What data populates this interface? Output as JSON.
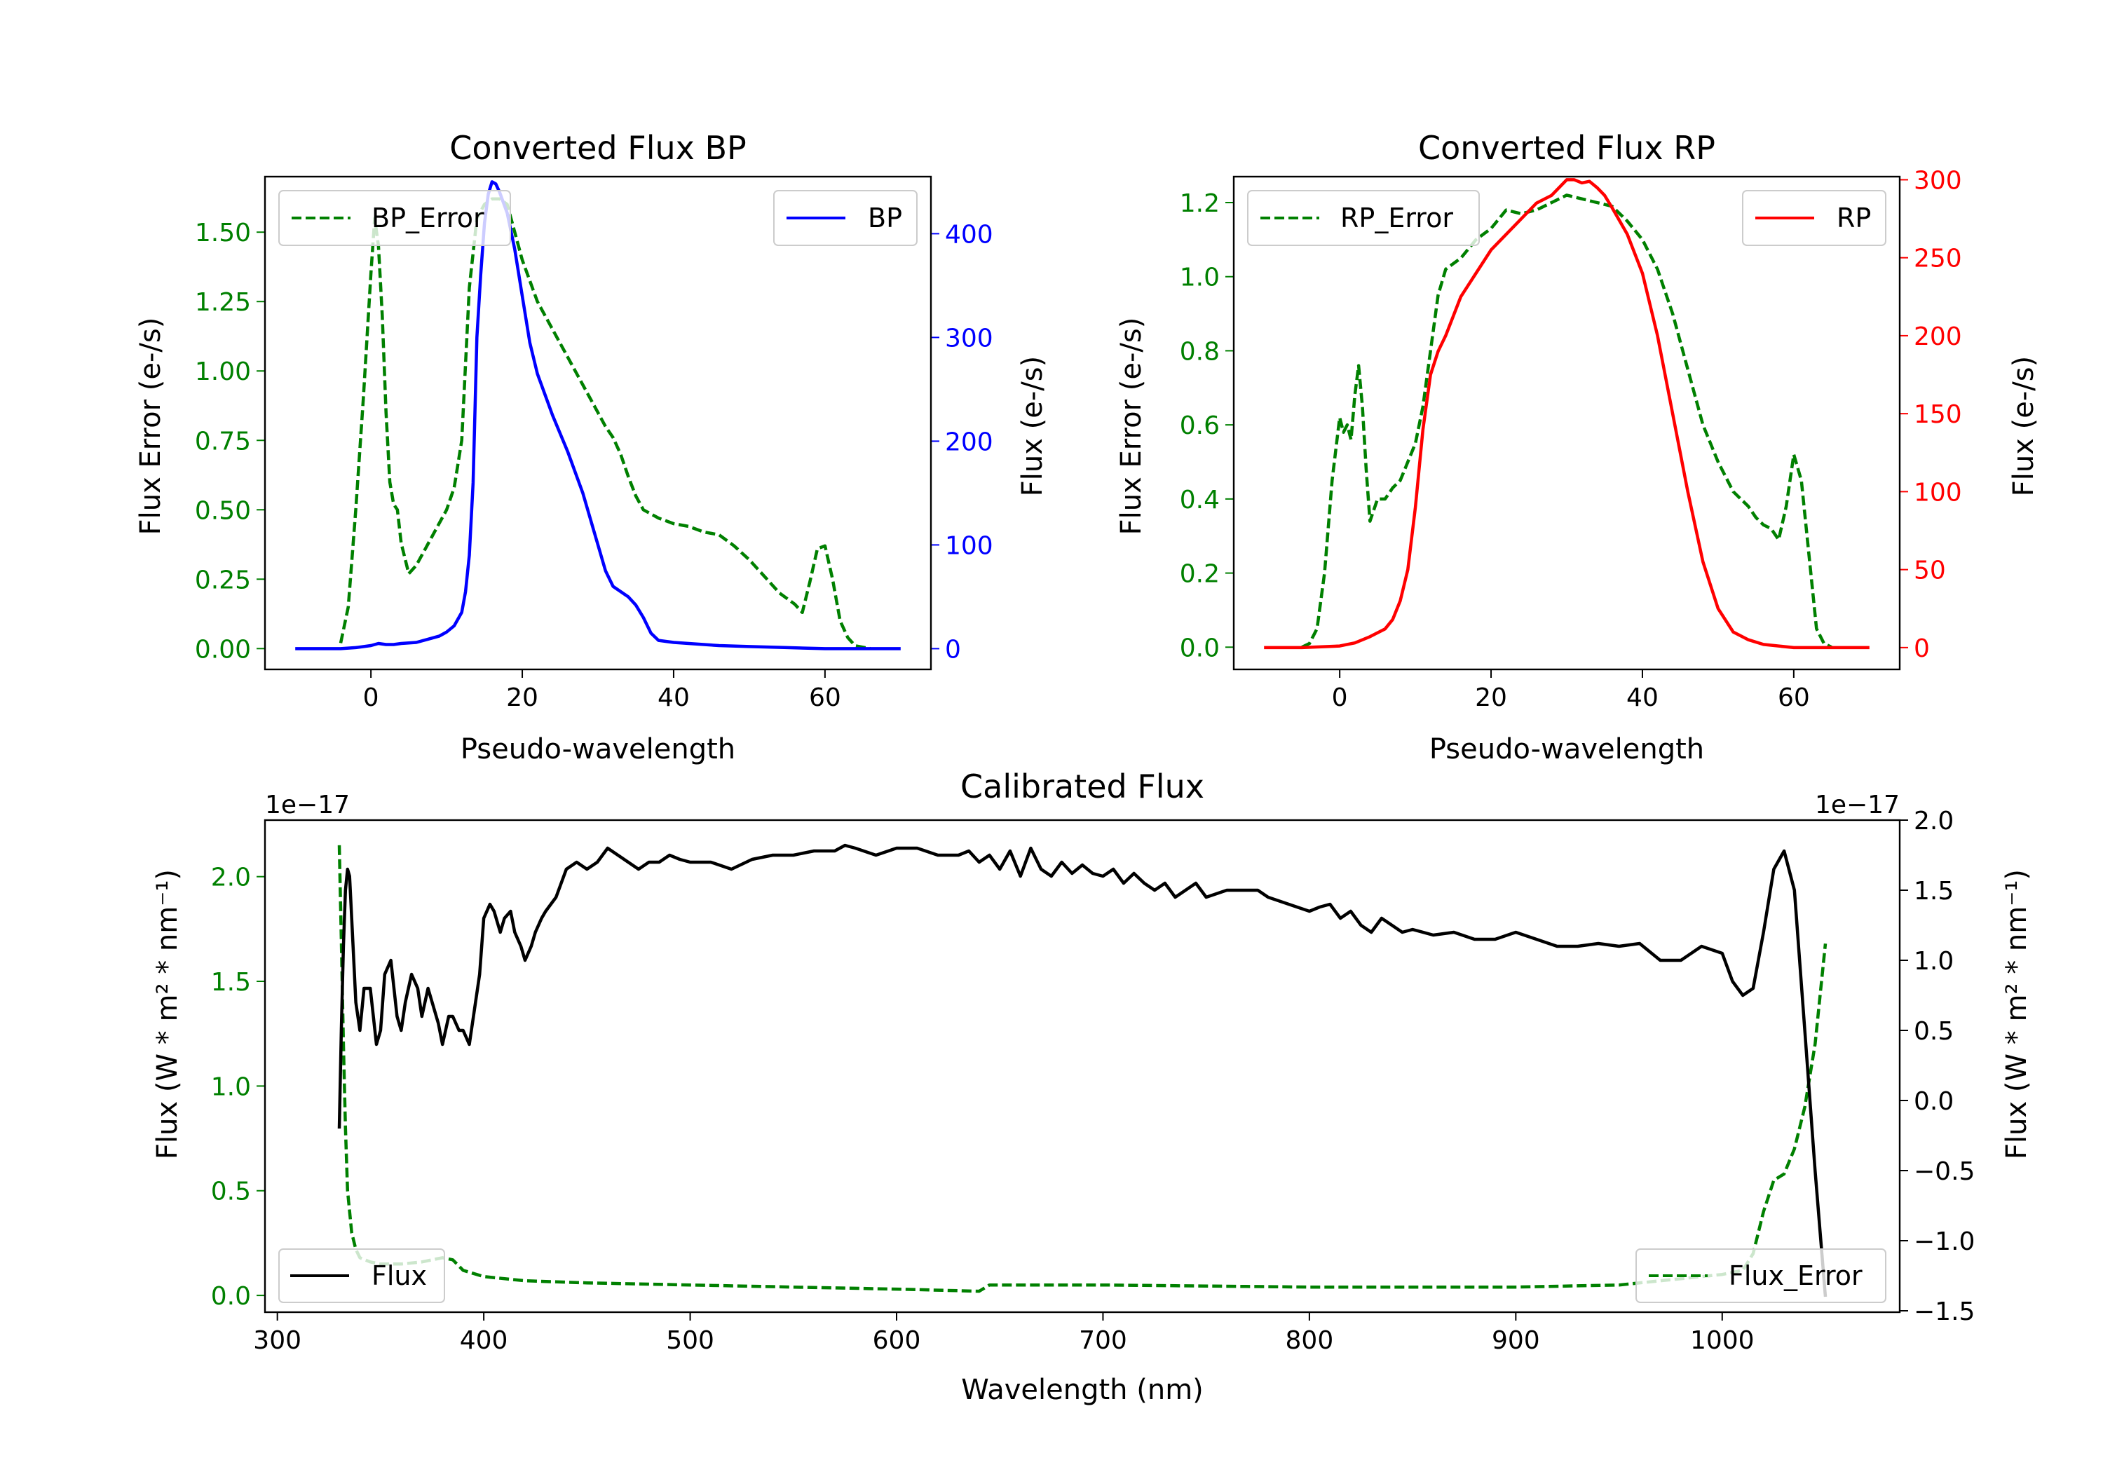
{
  "colors": {
    "green": "#008000",
    "blue": "#0000ff",
    "red": "#ff0000",
    "black": "#000000"
  },
  "chart_data": [
    {
      "id": "bp",
      "type": "line",
      "title": "Converted Flux BP",
      "xlabel": "Pseudo-wavelength",
      "ylabel_left": "Flux Error (e-/s)",
      "ylabel_right": "Flux (e-/s)",
      "xlim": [
        -14,
        74
      ],
      "xticks": [
        0,
        20,
        40,
        60
      ],
      "ylim_left": [
        -0.075,
        1.7
      ],
      "yticks_left": [
        0.0,
        0.25,
        0.5,
        0.75,
        1.0,
        1.25,
        1.5
      ],
      "ylim_right": [
        -20,
        455
      ],
      "yticks_right": [
        0,
        100,
        200,
        300,
        400
      ],
      "error_series": {
        "name": "BP_Error",
        "color": "#008000",
        "style": "dashed",
        "axis": "left",
        "x": [
          -4,
          -3,
          -2,
          -1,
          0,
          0.5,
          1,
          1.5,
          2,
          2.5,
          3,
          3.5,
          4,
          5,
          6,
          7,
          8,
          9,
          10,
          11,
          12,
          13,
          14,
          15,
          16,
          17,
          18,
          19,
          20,
          22,
          24,
          26,
          28,
          30,
          31,
          32,
          33,
          34,
          35,
          36,
          38,
          40,
          42,
          44,
          46,
          48,
          50,
          52,
          54,
          56,
          57,
          58,
          59,
          60,
          61,
          62,
          63,
          64,
          65,
          66
        ],
        "values": [
          0.02,
          0.15,
          0.5,
          0.9,
          1.35,
          1.55,
          1.45,
          1.2,
          0.85,
          0.6,
          0.52,
          0.5,
          0.38,
          0.27,
          0.3,
          0.35,
          0.4,
          0.45,
          0.5,
          0.58,
          0.75,
          1.3,
          1.55,
          1.6,
          1.62,
          1.62,
          1.6,
          1.5,
          1.4,
          1.25,
          1.15,
          1.05,
          0.95,
          0.85,
          0.8,
          0.76,
          0.7,
          0.62,
          0.55,
          0.5,
          0.47,
          0.45,
          0.44,
          0.42,
          0.41,
          0.37,
          0.32,
          0.26,
          0.2,
          0.16,
          0.13,
          0.24,
          0.36,
          0.37,
          0.25,
          0.1,
          0.04,
          0.01,
          0.005,
          0.0
        ]
      },
      "flux_series": {
        "name": "BP",
        "color": "#0000ff",
        "style": "solid",
        "axis": "right",
        "x": [
          -10,
          -8,
          -6,
          -4,
          -2,
          0,
          1,
          2,
          3,
          4,
          6,
          8,
          9,
          10,
          11,
          12,
          12.5,
          13,
          13.5,
          14,
          14.5,
          15,
          15.5,
          16,
          16.5,
          17,
          18,
          19,
          20,
          21,
          22,
          24,
          26,
          28,
          30,
          31,
          32,
          33,
          34,
          35,
          36,
          37,
          38,
          40,
          42,
          44,
          46,
          50,
          55,
          60,
          65,
          70
        ],
        "values": [
          0,
          0,
          0,
          0,
          1,
          3,
          5,
          4,
          4,
          5,
          6,
          10,
          12,
          16,
          22,
          35,
          55,
          90,
          160,
          300,
          360,
          410,
          438,
          450,
          448,
          440,
          420,
          385,
          340,
          295,
          265,
          225,
          190,
          150,
          100,
          75,
          60,
          55,
          50,
          42,
          30,
          15,
          8,
          6,
          5,
          4,
          3,
          2,
          1,
          0,
          0,
          0
        ]
      }
    },
    {
      "id": "rp",
      "type": "line",
      "title": "Converted Flux RP",
      "xlabel": "Pseudo-wavelength",
      "ylabel_left": "Flux Error (e-/s)",
      "ylabel_right": "Flux (e-/s)",
      "xlim": [
        -14,
        74
      ],
      "xticks": [
        0,
        20,
        40,
        60
      ],
      "ylim_left": [
        -0.06,
        1.27
      ],
      "yticks_left": [
        0.0,
        0.2,
        0.4,
        0.6,
        0.8,
        1.0,
        1.2
      ],
      "ylim_right": [
        -14,
        302
      ],
      "yticks_right": [
        0,
        50,
        100,
        150,
        200,
        250,
        300
      ],
      "error_series": {
        "name": "RP_Error",
        "color": "#008000",
        "style": "dashed",
        "axis": "left",
        "x": [
          -5,
          -4,
          -3,
          -2,
          -1,
          0,
          0.5,
          1,
          1.5,
          2,
          2.5,
          3,
          3.5,
          4,
          5,
          6,
          7,
          8,
          9,
          10,
          11,
          12,
          13,
          14,
          16,
          18,
          20,
          22,
          24,
          26,
          28,
          30,
          32,
          34,
          36,
          38,
          40,
          42,
          44,
          46,
          48,
          50,
          52,
          54,
          55,
          56,
          57,
          58,
          59,
          60,
          61,
          62,
          63,
          64,
          65
        ],
        "values": [
          0.0,
          0.01,
          0.05,
          0.2,
          0.45,
          0.62,
          0.58,
          0.6,
          0.56,
          0.68,
          0.76,
          0.65,
          0.48,
          0.34,
          0.4,
          0.4,
          0.43,
          0.45,
          0.5,
          0.55,
          0.65,
          0.8,
          0.95,
          1.02,
          1.05,
          1.1,
          1.13,
          1.18,
          1.17,
          1.18,
          1.2,
          1.22,
          1.21,
          1.2,
          1.19,
          1.15,
          1.1,
          1.02,
          0.9,
          0.75,
          0.6,
          0.5,
          0.42,
          0.38,
          0.35,
          0.33,
          0.32,
          0.29,
          0.38,
          0.52,
          0.45,
          0.25,
          0.05,
          0.01,
          0.0
        ]
      },
      "flux_series": {
        "name": "RP",
        "color": "#ff0000",
        "style": "solid",
        "axis": "right",
        "x": [
          -10,
          -5,
          0,
          2,
          4,
          6,
          7,
          8,
          9,
          10,
          11,
          12,
          13,
          14,
          16,
          18,
          20,
          22,
          24,
          26,
          28,
          30,
          31,
          32,
          33,
          34,
          35,
          36,
          38,
          40,
          42,
          44,
          46,
          48,
          50,
          52,
          54,
          56,
          60,
          65,
          70
        ],
        "values": [
          0,
          0,
          1,
          3,
          7,
          12,
          18,
          30,
          50,
          90,
          140,
          175,
          190,
          200,
          225,
          240,
          255,
          265,
          275,
          285,
          290,
          300,
          300,
          298,
          299,
          295,
          290,
          282,
          265,
          240,
          200,
          150,
          100,
          55,
          25,
          10,
          5,
          2,
          0,
          0,
          0
        ]
      }
    },
    {
      "id": "cal",
      "type": "line",
      "title": "Calibrated Flux",
      "xlabel": "Wavelength (nm)",
      "ylabel_left": "Flux (W * m² * nm⁻¹)",
      "ylabel_right": "Flux (W * m² * nm⁻¹)",
      "offset_left": "1e−17",
      "offset_right": "1e−17",
      "xlim": [
        294,
        1086
      ],
      "xticks": [
        300,
        400,
        500,
        600,
        700,
        800,
        900,
        1000
      ],
      "ylim_left": [
        -0.08,
        2.27
      ],
      "yticks_left": [
        0.0,
        0.5,
        1.0,
        1.5,
        2.0
      ],
      "ylim_right": [
        -1.51,
        2.0
      ],
      "yticks_right": [
        -1.5,
        -1.0,
        -0.5,
        0.0,
        0.5,
        1.0,
        1.5,
        2.0
      ],
      "error_series": {
        "name": "Flux_Error",
        "color": "#008000",
        "style": "dashed",
        "axis": "left",
        "x": [
          330,
          331,
          332,
          333,
          334,
          336,
          338,
          340,
          345,
          350,
          360,
          370,
          380,
          385,
          390,
          400,
          420,
          450,
          500,
          550,
          600,
          640,
          645,
          700,
          800,
          900,
          950,
          1000,
          1010,
          1015,
          1020,
          1025,
          1030,
          1035,
          1040,
          1045,
          1050
        ],
        "values": [
          2.15,
          1.7,
          1.2,
          0.8,
          0.5,
          0.3,
          0.22,
          0.18,
          0.16,
          0.15,
          0.15,
          0.16,
          0.18,
          0.17,
          0.12,
          0.09,
          0.07,
          0.06,
          0.05,
          0.04,
          0.03,
          0.02,
          0.05,
          0.05,
          0.04,
          0.04,
          0.05,
          0.1,
          0.12,
          0.2,
          0.4,
          0.55,
          0.58,
          0.7,
          0.9,
          1.2,
          1.68
        ]
      },
      "flux_series": {
        "name": "Flux",
        "color": "#000000",
        "style": "solid",
        "axis": "right",
        "x": [
          330,
          331,
          332,
          333,
          334,
          335,
          336,
          338,
          340,
          342,
          345,
          348,
          350,
          352,
          355,
          358,
          360,
          362,
          365,
          368,
          370,
          373,
          375,
          378,
          380,
          383,
          385,
          388,
          390,
          393,
          395,
          398,
          400,
          403,
          405,
          408,
          410,
          413,
          415,
          418,
          420,
          423,
          425,
          428,
          430,
          435,
          440,
          445,
          450,
          455,
          460,
          465,
          470,
          475,
          480,
          485,
          490,
          495,
          500,
          510,
          520,
          530,
          540,
          550,
          560,
          570,
          575,
          580,
          590,
          600,
          610,
          620,
          630,
          635,
          640,
          645,
          650,
          655,
          660,
          665,
          670,
          675,
          680,
          685,
          690,
          695,
          700,
          705,
          710,
          715,
          720,
          725,
          730,
          735,
          740,
          745,
          750,
          760,
          770,
          775,
          780,
          790,
          800,
          805,
          810,
          815,
          820,
          825,
          830,
          835,
          840,
          845,
          850,
          860,
          870,
          880,
          890,
          900,
          910,
          920,
          930,
          940,
          950,
          960,
          970,
          980,
          990,
          1000,
          1005,
          1010,
          1015,
          1020,
          1025,
          1030,
          1035,
          1040,
          1045,
          1050
        ],
        "values": [
          -0.2,
          0.5,
          1.1,
          1.5,
          1.65,
          1.6,
          1.3,
          0.7,
          0.5,
          0.8,
          0.8,
          0.4,
          0.5,
          0.9,
          1.0,
          0.6,
          0.5,
          0.7,
          0.9,
          0.8,
          0.6,
          0.8,
          0.7,
          0.55,
          0.4,
          0.6,
          0.6,
          0.5,
          0.5,
          0.4,
          0.6,
          0.9,
          1.3,
          1.4,
          1.35,
          1.2,
          1.3,
          1.35,
          1.2,
          1.1,
          1.0,
          1.1,
          1.2,
          1.3,
          1.35,
          1.45,
          1.65,
          1.7,
          1.65,
          1.7,
          1.8,
          1.75,
          1.7,
          1.65,
          1.7,
          1.7,
          1.75,
          1.72,
          1.7,
          1.7,
          1.65,
          1.72,
          1.75,
          1.75,
          1.78,
          1.78,
          1.82,
          1.8,
          1.75,
          1.8,
          1.8,
          1.75,
          1.75,
          1.78,
          1.7,
          1.75,
          1.65,
          1.78,
          1.6,
          1.8,
          1.65,
          1.6,
          1.7,
          1.62,
          1.68,
          1.62,
          1.6,
          1.65,
          1.55,
          1.62,
          1.55,
          1.5,
          1.55,
          1.45,
          1.5,
          1.55,
          1.45,
          1.5,
          1.5,
          1.5,
          1.45,
          1.4,
          1.35,
          1.38,
          1.4,
          1.3,
          1.35,
          1.25,
          1.2,
          1.3,
          1.25,
          1.2,
          1.22,
          1.18,
          1.2,
          1.15,
          1.15,
          1.2,
          1.15,
          1.1,
          1.1,
          1.12,
          1.1,
          1.12,
          1.0,
          1.0,
          1.1,
          1.05,
          0.85,
          0.75,
          0.8,
          1.2,
          1.65,
          1.78,
          1.5,
          0.5,
          -0.5,
          -1.4
        ]
      }
    }
  ]
}
